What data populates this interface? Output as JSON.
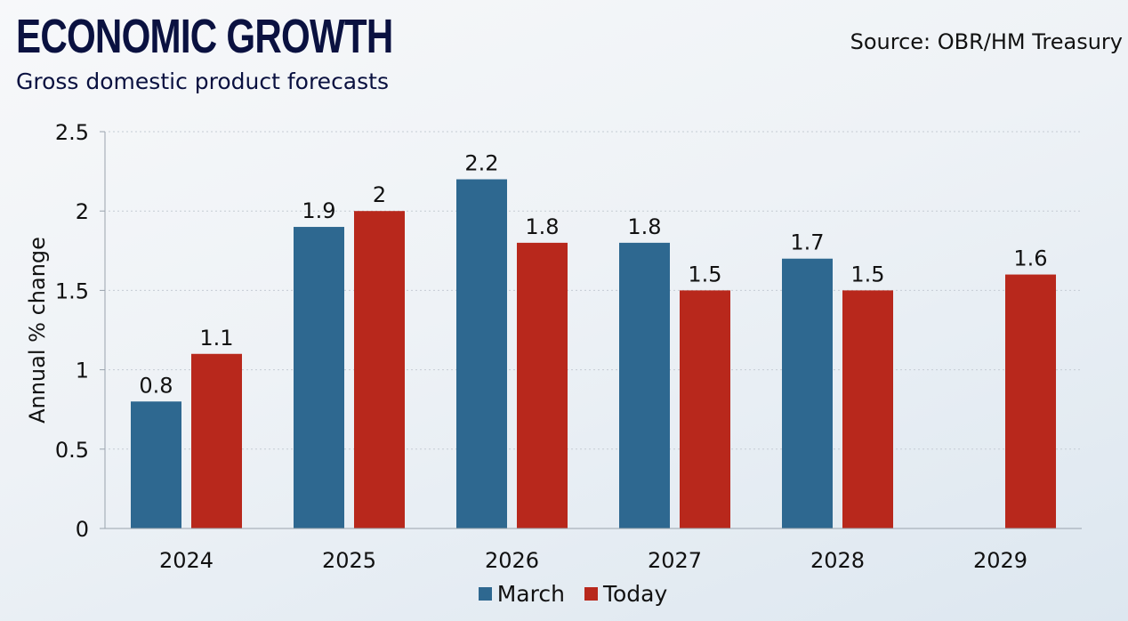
{
  "chart_data": {
    "type": "bar",
    "title": "ECONOMIC GROWTH",
    "subtitle": "Gross domestic product forecasts",
    "source": "Source: OBR/HM Treasury",
    "xlabel": "",
    "ylabel": "Annual % change",
    "ylim": [
      0,
      2.5
    ],
    "yticks": [
      "0",
      "0.5",
      "1",
      "1.5",
      "2",
      "2.5"
    ],
    "ytick_values": [
      0,
      0.5,
      1,
      1.5,
      2,
      2.5
    ],
    "grid": true,
    "legend_position": "bottom",
    "categories": [
      "2024",
      "2025",
      "2026",
      "2027",
      "2028",
      "2029"
    ],
    "series": [
      {
        "name": "March",
        "color": "#2e6890",
        "values": [
          0.8,
          1.9,
          2.2,
          1.8,
          1.7,
          null
        ]
      },
      {
        "name": "Today",
        "color": "#b8281c",
        "values": [
          1.1,
          2,
          1.8,
          1.5,
          1.5,
          1.6
        ]
      }
    ]
  }
}
